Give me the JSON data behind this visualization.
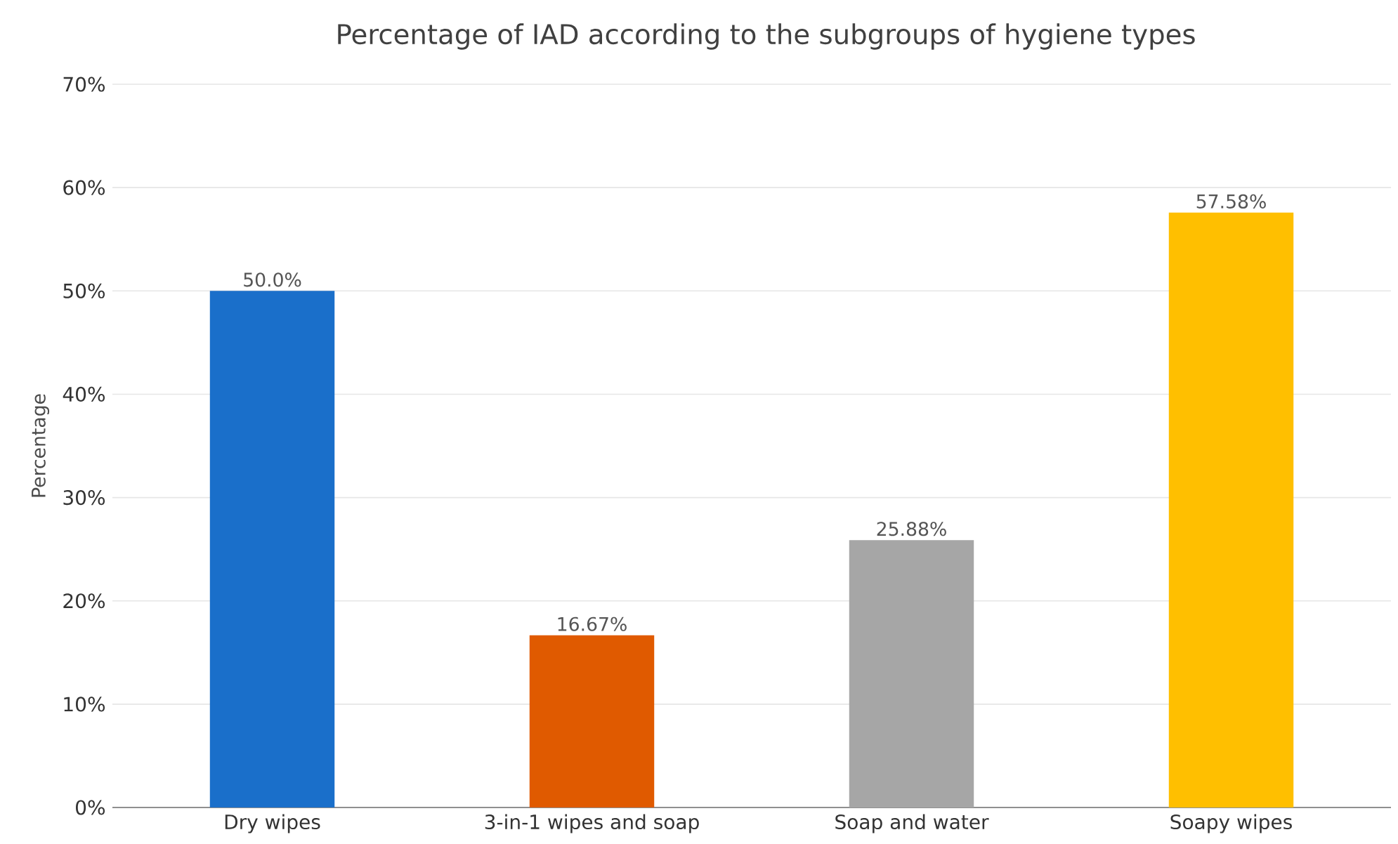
{
  "chart_data": {
    "type": "bar",
    "title": "Percentage of IAD according to the subgroups of hygiene types",
    "ylabel": "Percentage",
    "categories": [
      "Dry wipes",
      "3-in-1 wipes and soap",
      "Soap and water",
      "Soapy wipes"
    ],
    "values": [
      50.0,
      16.67,
      25.88,
      57.58
    ],
    "colors": [
      "#1a6fca",
      "#e05a00",
      "#a6a6a6",
      "#ffbf00"
    ],
    "value_labels": [
      "50.0%",
      "16.67%",
      "25.88%",
      "57.58%"
    ],
    "ylim": [
      0,
      70
    ],
    "yticks": [
      {
        "value": 0,
        "label": "0%"
      },
      {
        "value": 10,
        "label": "10%"
      },
      {
        "value": 20,
        "label": "20%"
      },
      {
        "value": 30,
        "label": "30%"
      },
      {
        "value": 40,
        "label": "40%"
      },
      {
        "value": 50,
        "label": "50%"
      },
      {
        "value": 60,
        "label": "60%"
      },
      {
        "value": 70,
        "label": "70%"
      }
    ],
    "grid": "y"
  }
}
